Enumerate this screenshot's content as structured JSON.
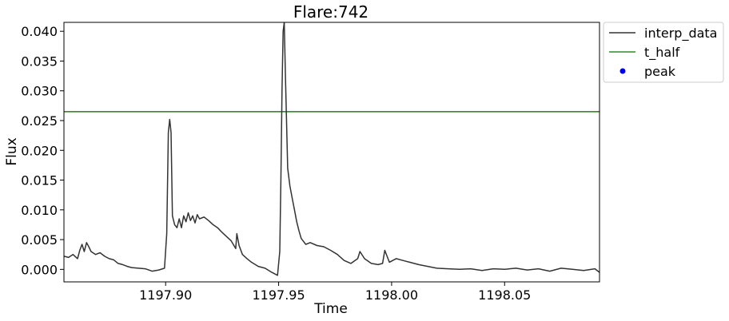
{
  "chart_data": {
    "type": "line",
    "title": "Flare:742",
    "xlabel": "Time",
    "ylabel": "Flux",
    "xlim": [
      1197.855,
      1198.092
    ],
    "ylim": [
      -0.0021,
      0.0415
    ],
    "xticks": [
      1197.9,
      1197.95,
      1198.0,
      1198.05
    ],
    "xtick_labels": [
      "1197.90",
      "1197.95",
      "1198.00",
      "1198.05"
    ],
    "yticks": [
      0.0,
      0.005,
      0.01,
      0.015,
      0.02,
      0.025,
      0.03,
      0.035,
      0.04
    ],
    "ytick_labels": [
      "0.000",
      "0.005",
      "0.010",
      "0.015",
      "0.020",
      "0.025",
      "0.030",
      "0.035",
      "0.040"
    ],
    "grid": false,
    "legend_position": "outside-top-right",
    "t_half": 0.0265,
    "series": [
      {
        "name": "interp_data",
        "color": "#333333",
        "x": [
          1197.855,
          1197.857,
          1197.859,
          1197.861,
          1197.862,
          1197.863,
          1197.864,
          1197.865,
          1197.866,
          1197.867,
          1197.869,
          1197.871,
          1197.873,
          1197.875,
          1197.877,
          1197.879,
          1197.881,
          1197.883,
          1197.885,
          1197.888,
          1197.891,
          1197.894,
          1197.897,
          1197.8995,
          1197.9005,
          1197.9012,
          1197.9018,
          1197.9024,
          1197.903,
          1197.904,
          1197.905,
          1197.906,
          1197.907,
          1197.908,
          1197.909,
          1197.91,
          1197.911,
          1197.912,
          1197.913,
          1197.914,
          1197.915,
          1197.917,
          1197.919,
          1197.921,
          1197.923,
          1197.925,
          1197.927,
          1197.929,
          1197.931,
          1197.9315,
          1197.9325,
          1197.934,
          1197.936,
          1197.938,
          1197.941,
          1197.944,
          1197.947,
          1197.9495,
          1197.9505,
          1197.951,
          1197.9515,
          1197.952,
          1197.9525,
          1197.953,
          1197.954,
          1197.955,
          1197.956,
          1197.957,
          1197.958,
          1197.959,
          1197.96,
          1197.962,
          1197.964,
          1197.967,
          1197.97,
          1197.973,
          1197.976,
          1197.979,
          1197.982,
          1197.985,
          1197.986,
          1197.988,
          1197.991,
          1197.994,
          1197.996,
          1197.997,
          1197.999,
          1198.002,
          1198.005,
          1198.008,
          1198.012,
          1198.016,
          1198.02,
          1198.025,
          1198.03,
          1198.035,
          1198.04,
          1198.045,
          1198.05,
          1198.055,
          1198.06,
          1198.065,
          1198.07,
          1198.075,
          1198.08,
          1198.085,
          1198.09,
          1198.092
        ],
        "y": [
          0.0022,
          0.002,
          0.0025,
          0.0018,
          0.0032,
          0.0042,
          0.003,
          0.0045,
          0.0038,
          0.003,
          0.0025,
          0.0028,
          0.0022,
          0.0018,
          0.0016,
          0.001,
          0.0008,
          0.0005,
          0.0003,
          0.0002,
          0.0001,
          -0.0003,
          -0.0001,
          0.0002,
          0.006,
          0.023,
          0.0252,
          0.023,
          0.009,
          0.0075,
          0.007,
          0.0085,
          0.007,
          0.009,
          0.008,
          0.0095,
          0.0082,
          0.009,
          0.0078,
          0.0092,
          0.0085,
          0.0088,
          0.0082,
          0.0075,
          0.007,
          0.0062,
          0.0055,
          0.0048,
          0.0035,
          0.006,
          0.004,
          0.0025,
          0.0018,
          0.0012,
          0.0005,
          0.0002,
          -0.0005,
          -0.001,
          0.003,
          0.015,
          0.03,
          0.04,
          0.0415,
          0.033,
          0.017,
          0.014,
          0.012,
          0.01,
          0.008,
          0.0065,
          0.0052,
          0.0042,
          0.0045,
          0.004,
          0.0038,
          0.0032,
          0.0025,
          0.0015,
          0.001,
          0.0018,
          0.003,
          0.0018,
          0.001,
          0.0008,
          0.001,
          0.0032,
          0.0012,
          0.0018,
          0.0015,
          0.0012,
          0.0008,
          0.0005,
          0.0002,
          0.0001,
          0.0,
          0.0001,
          -0.0002,
          0.0001,
          0.0,
          0.0002,
          -0.0001,
          0.0001,
          -0.0003,
          0.0002,
          0.0,
          -0.0002,
          0.0001,
          -0.0005
        ]
      }
    ],
    "legend": [
      {
        "name": "interp_data",
        "color": "#333333",
        "kind": "line"
      },
      {
        "name": "t_half",
        "color": "#2e8b2e",
        "kind": "line"
      },
      {
        "name": "peak",
        "color": "#0000ee",
        "kind": "marker"
      }
    ]
  }
}
